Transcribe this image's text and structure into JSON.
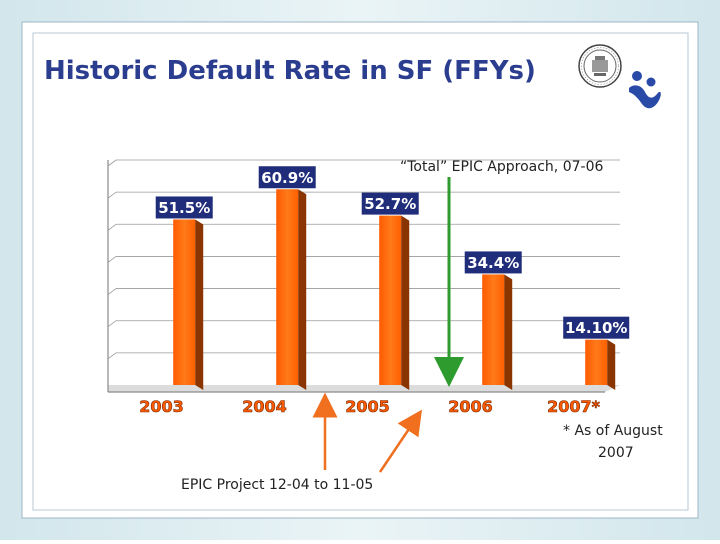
{
  "slide": {
    "title": "Historic Default Rate in SF (FFYs)",
    "seal_text": "CITY AND COUNTY OF SAN FRANCISCO",
    "annotation_total": "“Total” EPIC Approach, 07-06",
    "annotation_epic": "EPIC Project 12-04 to 11-05",
    "footnote_line1": "* As of August",
    "footnote_line2": "2007",
    "colors": {
      "title": "#2b3d8f",
      "bar_front": "#ff6a00",
      "bar_side": "#8a3400",
      "label_fill": "#1f2d7a",
      "tick_text": "#ff5a00",
      "arrow_orange": "#f07020",
      "arrow_green": "#2e9b2e",
      "logo_blue": "#2a4aa8"
    },
    "icons": [
      "seal-icon",
      "logo-icon"
    ]
  },
  "chart_data": {
    "type": "bar",
    "categories": [
      "2003",
      "2004",
      "2005",
      "2006",
      "2007*"
    ],
    "values": [
      51.5,
      60.9,
      52.7,
      34.4,
      14.1
    ],
    "value_labels": [
      "51.5%",
      "60.9%",
      "52.7%",
      "34.4%",
      "14.10%"
    ],
    "title": "Historic Default Rate in SF (FFYs)",
    "xlabel": "",
    "ylabel": "",
    "ylim": [
      0,
      70
    ],
    "grid": true
  }
}
